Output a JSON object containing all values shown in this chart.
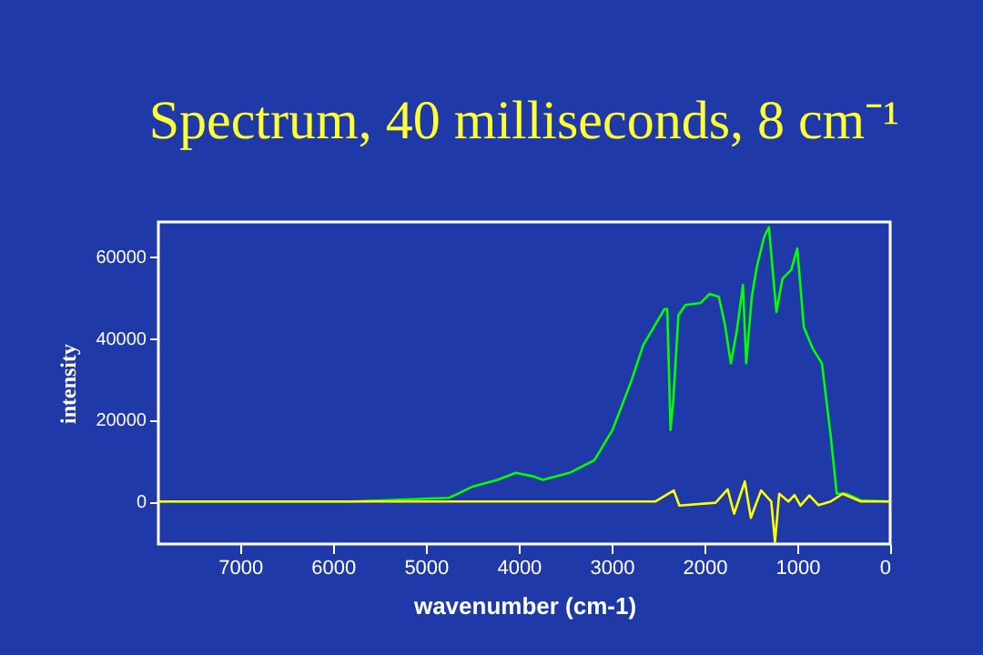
{
  "chart_data": {
    "type": "line",
    "title": "Spectrum, 40 milliseconds, 8 cm⁻¹",
    "xlabel": "wavenumber (cm-1)",
    "ylabel": "intensity",
    "xlim": [
      7880,
      0
    ],
    "xticks": [
      7000,
      6000,
      5000,
      4000,
      3000,
      2000,
      1000,
      0
    ],
    "ylim": [
      -10400,
      68400
    ],
    "yticks": [
      0,
      20000,
      40000,
      60000
    ],
    "grid": false,
    "marker": "none",
    "line_style": "solid",
    "series": [
      {
        "color": "#00ff00",
        "x": [
          7880,
          5800,
          4750,
          4490,
          4230,
          4030,
          3835,
          3740,
          3445,
          3185,
          2990,
          2790,
          2660,
          2430,
          2400,
          2365,
          2335,
          2280,
          2205,
          2040,
          1945,
          1845,
          1780,
          1715,
          1650,
          1585,
          1550,
          1490,
          1435,
          1355,
          1305,
          1280,
          1225,
          1160,
          1065,
          1000,
          930,
          835,
          735,
          640,
          575,
          475,
          315,
          0
        ],
        "values": [
          0,
          0,
          900,
          3700,
          5300,
          7000,
          6100,
          5300,
          7100,
          10100,
          17500,
          29300,
          38200,
          47100,
          47100,
          17500,
          24900,
          45600,
          48100,
          48600,
          50800,
          50100,
          43400,
          33800,
          41900,
          53000,
          33800,
          50100,
          57500,
          64900,
          67100,
          60400,
          46400,
          54500,
          56700,
          61900,
          42700,
          37500,
          33800,
          16000,
          1900,
          1900,
          300,
          0
        ]
      },
      {
        "color": "#ffff00",
        "x": [
          7880,
          5800,
          2530,
          2330,
          2270,
          1880,
          1750,
          1680,
          1565,
          1500,
          1390,
          1280,
          1240,
          1195,
          1095,
          1030,
          965,
          870,
          770,
          640,
          510,
          315,
          0
        ],
        "values": [
          0,
          0,
          0,
          2700,
          -1000,
          -300,
          3000,
          -3000,
          4900,
          -4000,
          2700,
          0,
          -10000,
          1900,
          0,
          1600,
          -1000,
          1500,
          -900,
          0,
          1900,
          0,
          0
        ]
      }
    ]
  }
}
